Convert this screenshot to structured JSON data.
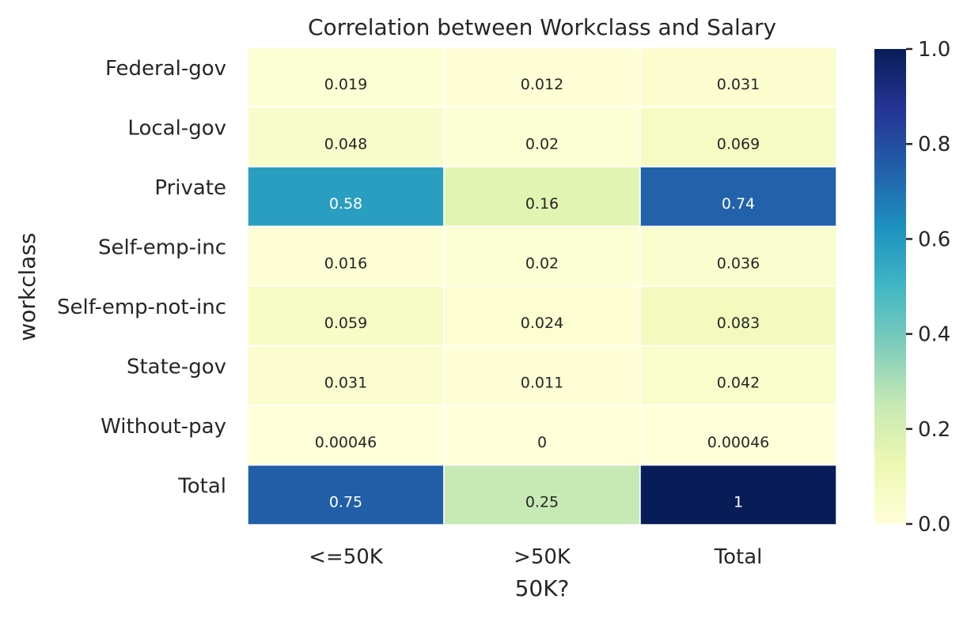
{
  "chart_data": {
    "type": "heatmap",
    "title": "Correlation between Workclass and Salary",
    "xlabel": "50K?",
    "ylabel": "workclass",
    "x_categories": [
      "<=50K",
      ">50K",
      "Total"
    ],
    "y_categories": [
      "Federal-gov",
      "Local-gov",
      "Private",
      "Self-emp-inc",
      "Self-emp-not-inc",
      "State-gov",
      "Without-pay",
      "Total"
    ],
    "values": [
      [
        0.019,
        0.012,
        0.031
      ],
      [
        0.048,
        0.02,
        0.069
      ],
      [
        0.58,
        0.16,
        0.74
      ],
      [
        0.016,
        0.02,
        0.036
      ],
      [
        0.059,
        0.024,
        0.083
      ],
      [
        0.031,
        0.011,
        0.042
      ],
      [
        0.00046,
        0,
        0.00046
      ],
      [
        0.75,
        0.25,
        1
      ]
    ],
    "annotations": [
      [
        "0.019",
        "0.012",
        "0.031"
      ],
      [
        "0.048",
        "0.02",
        "0.069"
      ],
      [
        "0.58",
        "0.16",
        "0.74"
      ],
      [
        "0.016",
        "0.02",
        "0.036"
      ],
      [
        "0.059",
        "0.024",
        "0.083"
      ],
      [
        "0.031",
        "0.011",
        "0.042"
      ],
      [
        "0.00046",
        "0",
        "0.00046"
      ],
      [
        "0.75",
        "0.25",
        "1"
      ]
    ],
    "colormap": "YlGnBu",
    "vmin": 0,
    "vmax": 1,
    "colorbar_ticks": [
      "0.0",
      "0.2",
      "0.4",
      "0.6",
      "0.8",
      "1.0"
    ],
    "colorbar_tick_values": [
      0,
      0.2,
      0.4,
      0.6,
      0.8,
      1.0
    ],
    "cell_border_color": "#ffffff",
    "text_color_dark": "#262626",
    "text_color_light": "#ffffff"
  }
}
